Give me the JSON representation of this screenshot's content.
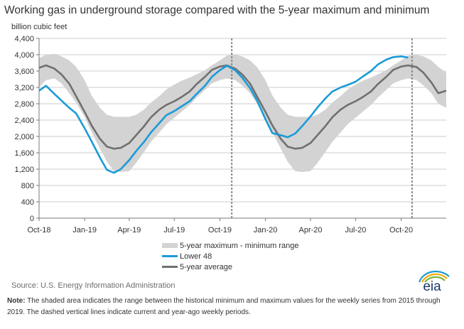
{
  "page": {
    "title": "Working gas in underground  storage compared with the 5-year maximum and minimum",
    "unit": "billion cubic feet",
    "source": "Source:  U.S. Energy Information Administration",
    "note_label": "Note:",
    "note_text": " The shaded area indicates the range between the historical minimum and maximum values for the weekly series from 2015 through 2019. The dashed vertical lines indicate current and year-ago weekly periods.",
    "logo_text": "eia"
  },
  "colors": {
    "range": "#d3d3d3",
    "lower48": "#1b9bd7",
    "average": "#707070",
    "grid": "#bdbdbd",
    "dashed": "#8c8c8c"
  },
  "chart_data": {
    "type": "area",
    "title": "Working gas in underground  storage compared with the 5-year maximum and minimum",
    "ylabel": "billion cubic feet",
    "ylim": [
      0,
      4400
    ],
    "y_ticks": [
      0,
      400,
      800,
      1200,
      1600,
      2000,
      2400,
      2800,
      3200,
      3600,
      4000,
      4400
    ],
    "y_tick_labels": [
      "0",
      "400",
      "800",
      "1,200",
      "1,600",
      "2,000",
      "2,400",
      "2,800",
      "3,200",
      "3,600",
      "4,000",
      "4,400"
    ],
    "xlim": [
      "2018-10-01",
      "2020-12-31"
    ],
    "x_ticks": [
      "2018-10-01",
      "2019-01-01",
      "2019-04-01",
      "2019-07-01",
      "2019-10-01",
      "2020-01-01",
      "2020-04-01",
      "2020-07-01",
      "2020-10-01"
    ],
    "x_tick_labels": [
      "Oct-18",
      "Jan-19",
      "Apr-19",
      "Jul-19",
      "Oct-19",
      "Jan-20",
      "Apr-20",
      "Jul-20",
      "Oct-20"
    ],
    "grid": true,
    "legend_position": "bottom",
    "legend": [
      "5-year maximum - minimum range",
      "Lower 48",
      "5-year average"
    ],
    "vlines_dashed": [
      "2019-10-25",
      "2020-10-23"
    ],
    "series": [
      {
        "name": "5-year maximum - minimum range",
        "kind": "band",
        "x": [
          "2018-10-01",
          "2018-10-15",
          "2018-11-01",
          "2018-11-15",
          "2018-12-01",
          "2018-12-15",
          "2019-01-01",
          "2019-01-15",
          "2019-02-01",
          "2019-02-15",
          "2019-03-01",
          "2019-03-15",
          "2019-04-01",
          "2019-04-15",
          "2019-05-01",
          "2019-05-15",
          "2019-06-01",
          "2019-06-15",
          "2019-07-01",
          "2019-07-15",
          "2019-08-01",
          "2019-08-15",
          "2019-09-01",
          "2019-09-15",
          "2019-10-01",
          "2019-10-15",
          "2019-11-01",
          "2019-11-15",
          "2019-12-01",
          "2019-12-15",
          "2020-01-01",
          "2020-01-15",
          "2020-02-01",
          "2020-02-15",
          "2020-03-01",
          "2020-03-15",
          "2020-04-01",
          "2020-04-15",
          "2020-05-01",
          "2020-05-15",
          "2020-06-01",
          "2020-06-15",
          "2020-07-01",
          "2020-07-15",
          "2020-08-01",
          "2020-08-15",
          "2020-09-01",
          "2020-09-15",
          "2020-10-01",
          "2020-10-15",
          "2020-11-01",
          "2020-11-15",
          "2020-12-01",
          "2020-12-15",
          "2020-12-31"
        ],
        "max": [
          3920,
          4000,
          4020,
          3960,
          3860,
          3700,
          3380,
          3000,
          2700,
          2530,
          2480,
          2480,
          2480,
          2530,
          2660,
          2830,
          2990,
          3150,
          3270,
          3360,
          3440,
          3520,
          3620,
          3740,
          3860,
          3980,
          4000,
          3960,
          3860,
          3700,
          3380,
          3000,
          2700,
          2530,
          2480,
          2480,
          2480,
          2530,
          2660,
          2830,
          2990,
          3150,
          3270,
          3360,
          3440,
          3520,
          3620,
          3740,
          3860,
          3980,
          4000,
          3960,
          3860,
          3700,
          3560
        ],
        "min": [
          3200,
          3380,
          3420,
          3300,
          3060,
          2820,
          2480,
          2100,
          1700,
          1380,
          1150,
          1130,
          1150,
          1350,
          1620,
          1870,
          2100,
          2300,
          2460,
          2600,
          2770,
          2950,
          3140,
          3300,
          3380,
          3420,
          3380,
          3250,
          3060,
          2800,
          2480,
          2100,
          1700,
          1380,
          1150,
          1130,
          1150,
          1350,
          1620,
          1870,
          2100,
          2300,
          2460,
          2600,
          2770,
          2950,
          3140,
          3300,
          3380,
          3420,
          3380,
          3250,
          3060,
          2800,
          2700
        ]
      },
      {
        "name": "Lower 48",
        "kind": "line",
        "x": [
          "2018-10-01",
          "2018-10-15",
          "2018-11-01",
          "2018-11-15",
          "2018-12-01",
          "2018-12-15",
          "2019-01-01",
          "2019-01-15",
          "2019-02-01",
          "2019-02-15",
          "2019-03-01",
          "2019-03-15",
          "2019-04-01",
          "2019-04-15",
          "2019-05-01",
          "2019-05-15",
          "2019-06-01",
          "2019-06-15",
          "2019-07-01",
          "2019-07-15",
          "2019-08-01",
          "2019-08-15",
          "2019-09-01",
          "2019-09-15",
          "2019-10-01",
          "2019-10-15",
          "2019-11-01",
          "2019-11-15",
          "2019-12-01",
          "2019-12-15",
          "2020-01-01",
          "2020-01-15",
          "2020-02-01",
          "2020-02-15",
          "2020-03-01",
          "2020-03-15",
          "2020-04-01",
          "2020-04-15",
          "2020-05-01",
          "2020-05-15",
          "2020-06-01",
          "2020-06-15",
          "2020-07-01",
          "2020-07-15",
          "2020-08-01",
          "2020-08-15",
          "2020-09-01",
          "2020-09-15",
          "2020-10-01",
          "2020-10-15"
        ],
        "values": [
          3120,
          3240,
          3040,
          2880,
          2700,
          2560,
          2200,
          1880,
          1480,
          1180,
          1110,
          1200,
          1420,
          1640,
          1870,
          2100,
          2330,
          2520,
          2620,
          2730,
          2860,
          3040,
          3240,
          3460,
          3620,
          3730,
          3620,
          3440,
          3180,
          2880,
          2420,
          2080,
          2030,
          1980,
          2070,
          2250,
          2490,
          2710,
          2930,
          3100,
          3200,
          3260,
          3340,
          3460,
          3600,
          3760,
          3880,
          3940,
          3960,
          3930
        ]
      },
      {
        "name": "5-year average",
        "kind": "line",
        "x": [
          "2018-10-01",
          "2018-10-15",
          "2018-11-01",
          "2018-11-15",
          "2018-12-01",
          "2018-12-15",
          "2019-01-01",
          "2019-01-15",
          "2019-02-01",
          "2019-02-15",
          "2019-03-01",
          "2019-03-15",
          "2019-04-01",
          "2019-04-15",
          "2019-05-01",
          "2019-05-15",
          "2019-06-01",
          "2019-06-15",
          "2019-07-01",
          "2019-07-15",
          "2019-08-01",
          "2019-08-15",
          "2019-09-01",
          "2019-09-15",
          "2019-10-01",
          "2019-10-15",
          "2019-11-01",
          "2019-11-15",
          "2019-12-01",
          "2019-12-15",
          "2020-01-01",
          "2020-01-15",
          "2020-02-01",
          "2020-02-15",
          "2020-03-01",
          "2020-03-15",
          "2020-04-01",
          "2020-04-15",
          "2020-05-01",
          "2020-05-15",
          "2020-06-01",
          "2020-06-15",
          "2020-07-01",
          "2020-07-15",
          "2020-08-01",
          "2020-08-15",
          "2020-09-01",
          "2020-09-15",
          "2020-10-01",
          "2020-10-15",
          "2020-11-01",
          "2020-11-15",
          "2020-12-01",
          "2020-12-15",
          "2020-12-31"
        ],
        "values": [
          3680,
          3740,
          3660,
          3520,
          3290,
          2980,
          2600,
          2270,
          1940,
          1750,
          1700,
          1720,
          1840,
          2030,
          2250,
          2470,
          2660,
          2770,
          2860,
          2960,
          3100,
          3280,
          3460,
          3630,
          3710,
          3740,
          3660,
          3520,
          3290,
          2980,
          2600,
          2270,
          1940,
          1750,
          1700,
          1720,
          1840,
          2030,
          2250,
          2470,
          2660,
          2770,
          2860,
          2960,
          3100,
          3280,
          3460,
          3630,
          3710,
          3740,
          3700,
          3560,
          3320,
          3060,
          3120
        ]
      }
    ]
  }
}
